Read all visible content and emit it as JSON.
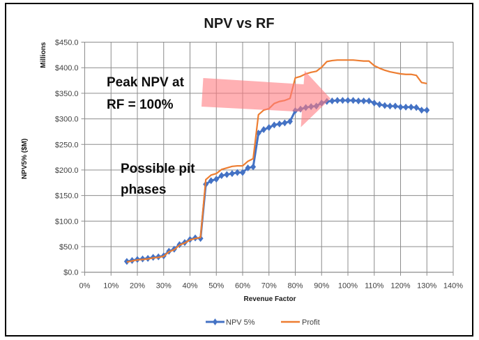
{
  "chart_data": {
    "type": "line",
    "title": "NPV vs RF",
    "xlabel": "Revenue Factor",
    "ylabel": "NPV5% ($M)",
    "y_unit_label": "Millions",
    "xlim": [
      0,
      140
    ],
    "ylim": [
      0,
      450
    ],
    "x_ticks": [
      0,
      10,
      20,
      30,
      40,
      50,
      60,
      70,
      80,
      90,
      100,
      110,
      120,
      130,
      140
    ],
    "x_tick_labels": [
      "0%",
      "10%",
      "20%",
      "30%",
      "40%",
      "50%",
      "60%",
      "70%",
      "80%",
      "90%",
      "100%",
      "110%",
      "120%",
      "130%",
      "140%"
    ],
    "y_ticks": [
      0,
      50,
      100,
      150,
      200,
      250,
      300,
      350,
      400,
      450
    ],
    "y_tick_labels": [
      "$0.0",
      "$50.0",
      "$100.0",
      "$150.0",
      "$200.0",
      "$250.0",
      "$300.0",
      "$350.0",
      "$400.0",
      "$450.0"
    ],
    "grid": true,
    "legend_position": "bottom",
    "x": [
      16,
      18,
      20,
      22,
      24,
      26,
      28,
      30,
      32,
      34,
      36,
      38,
      40,
      42,
      44,
      46,
      48,
      50,
      52,
      54,
      56,
      58,
      60,
      62,
      64,
      66,
      68,
      70,
      72,
      74,
      76,
      78,
      80,
      82,
      84,
      86,
      88,
      90,
      92,
      94,
      96,
      98,
      100,
      102,
      104,
      106,
      108,
      110,
      112,
      114,
      116,
      118,
      120,
      122,
      124,
      126,
      128,
      130
    ],
    "series": [
      {
        "name": "NPV 5%",
        "color": "#4472C4",
        "marker": "diamond",
        "values": [
          21,
          23,
          25,
          26,
          27,
          29,
          30,
          32,
          41,
          45,
          54,
          58,
          64,
          67,
          66,
          172,
          179,
          182,
          189,
          191,
          193,
          195,
          195,
          204,
          206,
          272,
          279,
          283,
          288,
          290,
          292,
          295,
          316,
          319,
          322,
          324,
          325,
          331,
          334,
          335,
          336,
          336,
          336,
          336,
          335,
          335,
          335,
          331,
          328,
          326,
          325,
          325,
          323,
          323,
          323,
          322,
          317,
          317
        ]
      },
      {
        "name": "Profit",
        "color": "#ED7D31",
        "marker": "none",
        "values": [
          20,
          22,
          24,
          25,
          26,
          28,
          29,
          31,
          40,
          44,
          53,
          57,
          63,
          66,
          68,
          181,
          190,
          193,
          201,
          204,
          207,
          208,
          208,
          217,
          222,
          308,
          317,
          320,
          330,
          334,
          336,
          340,
          380,
          383,
          388,
          391,
          393,
          401,
          412,
          414,
          415,
          415,
          415,
          415,
          414,
          413,
          413,
          404,
          399,
          395,
          392,
          390,
          388,
          387,
          387,
          385,
          371,
          369
        ]
      }
    ],
    "annotations": [
      {
        "text_lines": [
          "Peak NPV at",
          "RF = 100%"
        ]
      },
      {
        "text_lines": [
          "Possible pit",
          "phases"
        ]
      }
    ],
    "arrow": {
      "color": "#FF7C80",
      "opacity": 0.6,
      "direction": "right"
    }
  }
}
